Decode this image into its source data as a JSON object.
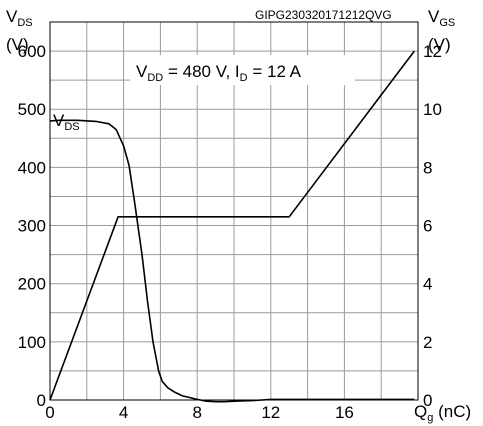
{
  "reference_code": "GIPG230320171212QVG",
  "condition": {
    "vdd_main": "V",
    "vdd_sub": "DD",
    "vdd_value": " = 480 V, I",
    "id_sub": "D",
    "id_value": " = 12 A"
  },
  "left_axis": {
    "symbol": "V",
    "symbol_sub": "DS",
    "unit": "(V)"
  },
  "right_axis": {
    "symbol": "V",
    "symbol_sub": "GS",
    "unit": "(V)"
  },
  "x_axis": {
    "symbol": "Q",
    "symbol_sub": "g",
    "unit": " (nC)"
  },
  "curve_label": {
    "main": "V",
    "sub": "DS"
  },
  "chart_data": {
    "type": "line",
    "title": "",
    "xlabel": "Qg (nC)",
    "ylabel": "VDS (V)",
    "y2label": "VGS (V)",
    "xlim": [
      0,
      20
    ],
    "ylim": [
      0,
      650
    ],
    "y2lim": [
      0,
      13
    ],
    "xticks": [
      0,
      4,
      8,
      12,
      16
    ],
    "yticks": [
      0,
      100,
      200,
      300,
      400,
      500,
      600
    ],
    "y2ticks": [
      0,
      2,
      4,
      6,
      8,
      10,
      12
    ],
    "grid": true,
    "series": [
      {
        "name": "VDS",
        "axis": "left",
        "x": [
          0,
          0.5,
          1.5,
          2.5,
          3.2,
          3.6,
          4.0,
          4.3,
          4.6,
          5.0,
          5.3,
          5.6,
          5.9,
          6.1,
          6.4,
          6.8,
          7.2,
          8.0,
          8.5,
          9.0,
          9.5,
          10.0,
          11.0,
          12.0,
          13.0,
          16.0,
          19.8
        ],
        "values": [
          480,
          481,
          481,
          479,
          475,
          465,
          437,
          403,
          340,
          250,
          170,
          100,
          50,
          32,
          21,
          13,
          7,
          1,
          -2,
          -3,
          -3,
          -2,
          -1,
          1,
          1,
          1,
          1
        ]
      },
      {
        "name": "VGS",
        "axis": "right",
        "x": [
          0,
          3.7,
          13.0,
          19.8
        ],
        "values": [
          0,
          6.3,
          6.3,
          12
        ]
      }
    ]
  }
}
